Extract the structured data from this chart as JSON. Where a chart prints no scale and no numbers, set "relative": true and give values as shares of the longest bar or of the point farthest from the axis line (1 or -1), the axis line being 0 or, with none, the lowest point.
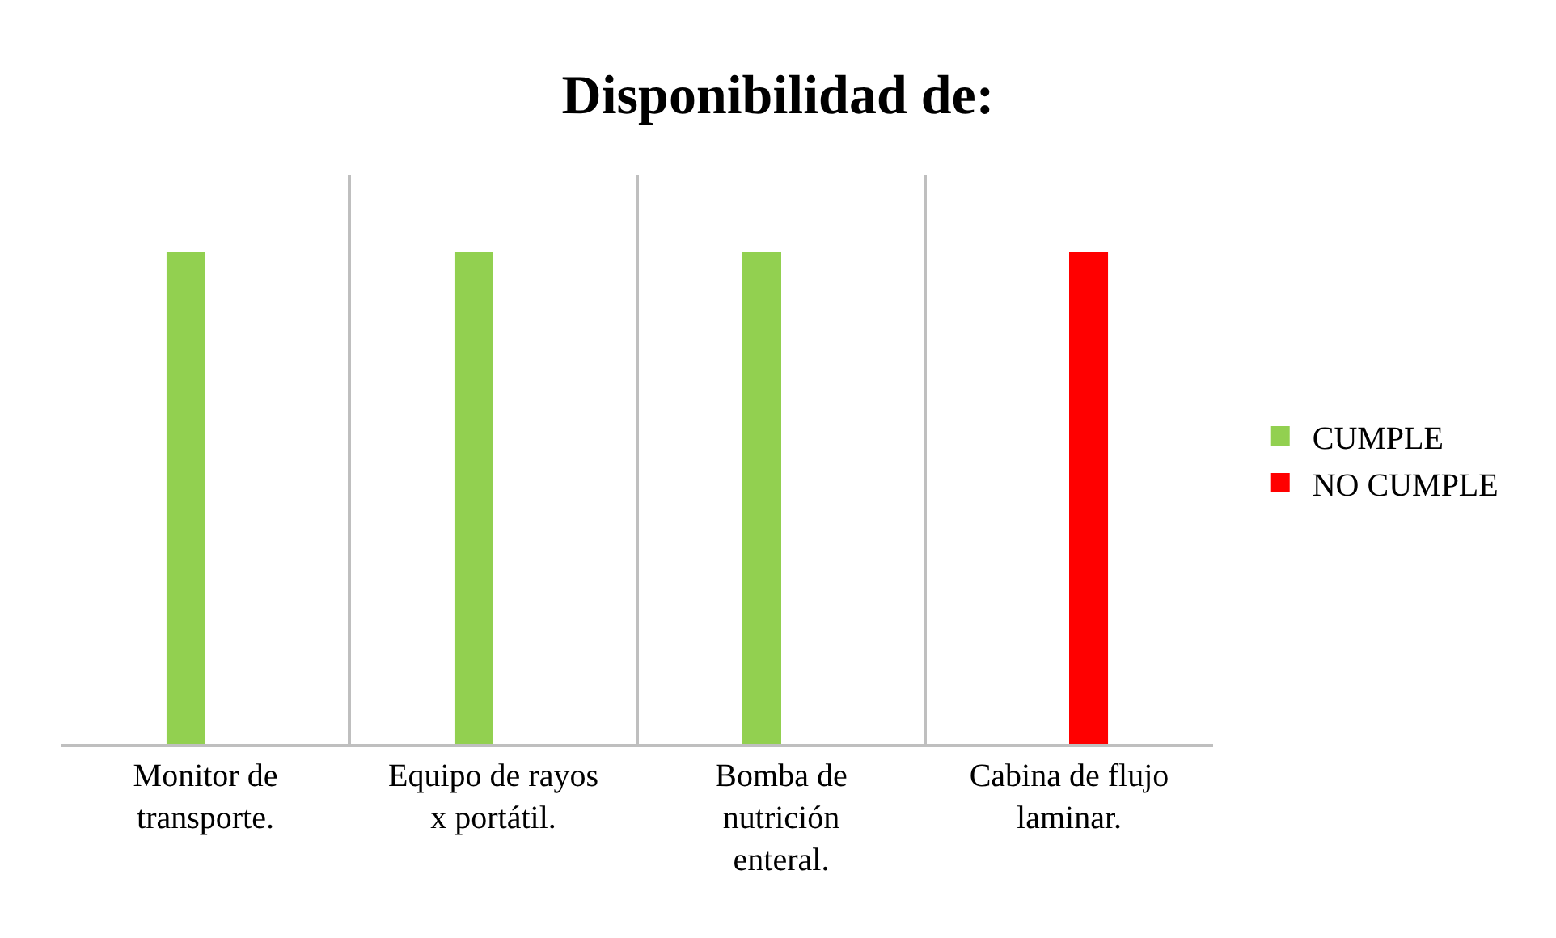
{
  "chart_data": {
    "type": "bar",
    "title": "Disponibilidad de:",
    "relative": true,
    "grid": "x",
    "legend": "right",
    "categories": [
      "Monitor de transporte.",
      "Equipo de rayos x portátil.",
      "Bomba de nutrición enteral.",
      "Cabina de flujo laminar."
    ],
    "series": [
      {
        "name": "CUMPLE",
        "color": "#92d050",
        "values": [
          1,
          1,
          1,
          null
        ]
      },
      {
        "name": "NO CUMPLE",
        "color": "#ff0000",
        "values": [
          null,
          null,
          null,
          1
        ]
      }
    ]
  }
}
